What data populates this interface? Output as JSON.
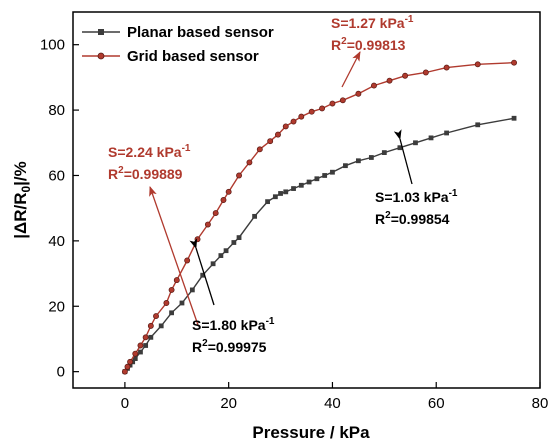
{
  "chart_data": {
    "type": "line",
    "xlabel": "Pressure / kPa",
    "ylabel": "|ΔR/R0|/%",
    "xlim": [
      -10,
      80
    ],
    "ylim": [
      -5,
      110
    ],
    "xticks": [
      0,
      20,
      40,
      60,
      80
    ],
    "yticks": [
      0,
      20,
      40,
      60,
      80,
      100
    ],
    "legend_position": "top-left",
    "series": [
      {
        "name": "Planar based sensor",
        "color": "#3c3c3c",
        "x": [
          0,
          0.5,
          1,
          1.5,
          2,
          3,
          4,
          5,
          7,
          9,
          11,
          13,
          15,
          17,
          18.5,
          19.5,
          21,
          22,
          25,
          27.5,
          29,
          30,
          31,
          32.5,
          34,
          35.5,
          37,
          38.5,
          40,
          42.5,
          45,
          47.5,
          50,
          53,
          56,
          59,
          62,
          68,
          75
        ],
        "y": [
          0,
          1,
          2,
          3,
          4,
          6,
          8,
          10.5,
          14,
          18,
          21,
          25,
          29.5,
          33,
          35.5,
          37,
          39.5,
          41,
          47.5,
          52,
          53.5,
          54.5,
          55,
          56,
          57,
          58,
          59,
          60,
          61,
          63,
          64.5,
          65.5,
          67,
          68.5,
          70,
          71.5,
          73,
          75.5,
          77.5
        ]
      },
      {
        "name": "Grid based sensor",
        "color": "#b03a2e",
        "x": [
          0,
          0.5,
          1,
          2,
          3,
          4,
          5,
          6,
          8,
          9,
          10,
          12,
          14,
          16,
          17.5,
          19,
          20,
          22,
          24,
          26,
          28,
          29.5,
          31,
          32.5,
          34,
          36,
          38,
          40,
          42,
          45,
          48,
          51,
          54,
          58,
          62,
          68,
          75
        ],
        "y": [
          0,
          1.5,
          3,
          5.5,
          8,
          10.5,
          14,
          17,
          21,
          25,
          28,
          34,
          40.5,
          45,
          48.5,
          52.5,
          55,
          60,
          64,
          68,
          70.5,
          72.5,
          75,
          76.5,
          78,
          79.5,
          80.5,
          82,
          83,
          85,
          87.5,
          89,
          90.5,
          91.5,
          93,
          94,
          94.5
        ]
      }
    ],
    "annotations": [
      {
        "text": "S=2.24 kPa",
        "sup": "-1",
        "r2": "R",
        "r2sup": "2",
        "r2val": "=0.99889",
        "color": "#b03a2e"
      },
      {
        "text": "S=1.27 kPa",
        "sup": "-1",
        "r2": "R",
        "r2sup": "2",
        "r2val": "=0.99813",
        "color": "#b03a2e"
      },
      {
        "text": "S=1.80 kPa",
        "sup": "-1",
        "r2": "R",
        "r2sup": "2",
        "r2val": "=0.99975",
        "color": "#000000"
      },
      {
        "text": "S=1.03 kPa",
        "sup": "-1",
        "r2": "R",
        "r2sup": "2",
        "r2val": "=0.99854",
        "color": "#000000"
      }
    ]
  }
}
